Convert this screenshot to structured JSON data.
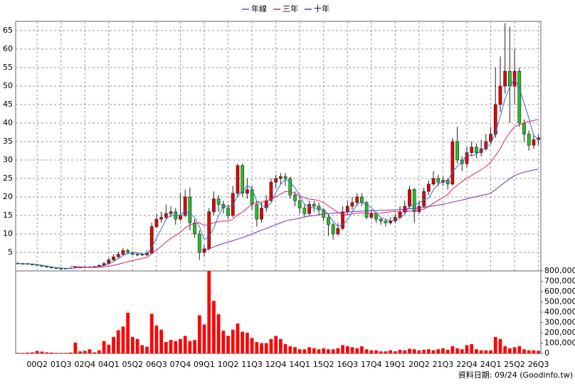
{
  "chart_data": [
    {
      "type": "candlestick",
      "legend": "top",
      "grid": true,
      "up_color": "#e00000",
      "down_color": "#22c022",
      "categories": [
        null,
        null,
        null,
        null,
        "00Q2",
        null,
        null,
        null,
        null,
        "01Q3",
        null,
        null,
        null,
        null,
        "02Q4",
        null,
        null,
        null,
        null,
        "04Q1",
        null,
        null,
        null,
        null,
        "05Q2",
        null,
        null,
        null,
        null,
        "06Q3",
        null,
        null,
        null,
        null,
        "07Q4",
        null,
        null,
        null,
        null,
        "09Q1",
        null,
        null,
        null,
        null,
        "10Q2",
        null,
        null,
        null,
        null,
        "11Q3",
        null,
        null,
        null,
        null,
        "12Q4",
        null,
        null,
        null,
        null,
        "14Q1",
        null,
        null,
        null,
        null,
        "15Q2",
        null,
        null,
        null,
        null,
        "16Q3",
        null,
        null,
        null,
        null,
        "17Q4",
        null,
        null,
        null,
        null,
        "19Q1",
        null,
        null,
        null,
        null,
        "20Q2",
        null,
        null,
        null,
        null,
        "21Q3",
        null,
        null,
        null,
        null,
        "22Q4",
        null,
        null,
        null,
        null,
        "24Q1",
        null,
        null,
        null,
        null,
        "25Q2",
        null,
        null,
        null,
        null,
        "26Q3"
      ],
      "open": [
        2.1,
        2.0,
        2.0,
        1.8,
        1.7,
        1.5,
        1.2,
        1.0,
        0.8,
        0.7,
        0.7,
        0.7,
        0.8,
        1.0,
        1.0,
        1.1,
        1.0,
        1.2,
        1.5,
        2.0,
        3.0,
        3.8,
        4.5,
        5.5,
        5.0,
        4.5,
        4.5,
        4.3,
        4.8,
        12.0,
        14.0,
        14.5,
        15.5,
        16.0,
        14.0,
        15.0,
        20.0,
        13.0,
        10.0,
        5.0,
        6.0,
        16.0,
        19.5,
        18.0,
        17.0,
        15.0,
        21.0,
        28.5,
        21.0,
        22.0,
        18.0,
        14.0,
        17.0,
        19.0,
        24.0,
        25.0,
        25.5,
        25.0,
        20.5,
        19.0,
        17.0,
        15.5,
        18.0,
        17.5,
        16.5,
        14.5,
        12.5,
        10.0,
        11.5,
        16.0,
        17.5,
        18.5,
        20.0,
        18.5,
        14.5,
        15.5,
        14.0,
        13.5,
        13.0,
        13.5,
        14.5,
        16.0,
        17.5,
        22.0,
        16.0,
        17.5,
        21.5,
        23.5,
        25.0,
        24.0,
        24.5,
        23.5,
        35.0,
        30.0,
        29.0,
        32.0,
        33.5,
        32.0,
        33.0,
        35.0,
        37.0,
        45.0,
        50.0,
        54.0,
        50.0,
        54.0,
        40.0,
        37.0,
        34.0,
        35.5
      ],
      "high": [
        2.3,
        2.2,
        2.1,
        1.9,
        1.8,
        1.6,
        1.3,
        1.1,
        0.9,
        0.8,
        0.8,
        0.9,
        1.2,
        1.2,
        1.3,
        1.3,
        1.4,
        1.8,
        2.4,
        3.5,
        4.5,
        5.2,
        6.2,
        6.0,
        5.3,
        5.0,
        4.9,
        5.5,
        13.0,
        15.5,
        16.0,
        18.0,
        17.5,
        17.0,
        21.0,
        22.0,
        22.5,
        14.0,
        11.0,
        7.0,
        17.0,
        21.5,
        20.5,
        19.0,
        18.0,
        23.0,
        29.0,
        29.0,
        25.0,
        23.0,
        19.0,
        18.5,
        20.5,
        25.0,
        26.0,
        26.5,
        26.5,
        25.5,
        21.5,
        20.0,
        18.0,
        19.0,
        19.0,
        18.5,
        17.0,
        15.5,
        13.0,
        13.0,
        17.5,
        19.0,
        20.0,
        21.0,
        21.0,
        19.0,
        16.5,
        16.0,
        14.5,
        14.0,
        14.5,
        15.5,
        17.5,
        19.0,
        23.0,
        22.5,
        19.0,
        22.5,
        24.5,
        27.0,
        26.0,
        25.5,
        25.0,
        36.0,
        39.0,
        31.0,
        33.5,
        35.0,
        34.5,
        35.5,
        37.0,
        39.0,
        55.0,
        58.0,
        67.0,
        66.0,
        60.0,
        55.0,
        41.0,
        38.0,
        37.0,
        37.0
      ],
      "low": [
        1.9,
        1.9,
        1.7,
        1.6,
        1.4,
        1.1,
        0.9,
        0.7,
        0.6,
        0.6,
        0.6,
        0.6,
        0.7,
        0.9,
        0.9,
        0.9,
        0.9,
        1.1,
        1.4,
        1.9,
        2.8,
        3.6,
        4.3,
        4.6,
        4.2,
        4.0,
        4.0,
        4.1,
        4.6,
        11.5,
        13.0,
        14.0,
        14.5,
        12.5,
        13.5,
        14.5,
        11.0,
        9.0,
        3.0,
        4.0,
        5.5,
        15.0,
        16.0,
        15.5,
        14.0,
        14.5,
        20.0,
        20.0,
        19.5,
        16.5,
        12.0,
        13.0,
        16.0,
        18.5,
        22.5,
        23.5,
        23.0,
        19.5,
        17.5,
        15.5,
        14.5,
        15.0,
        16.0,
        15.0,
        13.5,
        9.5,
        8.5,
        9.5,
        11.0,
        15.0,
        16.5,
        17.5,
        17.5,
        14.0,
        14.0,
        13.0,
        12.5,
        12.0,
        12.5,
        13.0,
        14.0,
        15.5,
        17.0,
        13.0,
        15.5,
        17.0,
        20.5,
        23.0,
        23.0,
        23.0,
        22.0,
        23.0,
        29.0,
        27.0,
        28.0,
        31.0,
        30.5,
        31.0,
        32.5,
        34.5,
        36.0,
        43.0,
        48.0,
        40.0,
        45.0,
        39.0,
        35.0,
        32.5,
        33.0,
        34.0
      ],
      "close": [
        2.0,
        2.0,
        1.8,
        1.7,
        1.5,
        1.2,
        1.0,
        0.8,
        0.7,
        0.7,
        0.7,
        0.8,
        1.0,
        1.0,
        1.1,
        1.0,
        1.2,
        1.5,
        2.0,
        3.0,
        3.8,
        4.5,
        5.5,
        5.0,
        4.5,
        4.5,
        4.3,
        4.8,
        12.0,
        14.0,
        14.5,
        15.5,
        16.0,
        14.0,
        15.0,
        20.0,
        13.0,
        10.0,
        5.0,
        6.0,
        16.0,
        19.5,
        18.0,
        17.0,
        15.0,
        21.0,
        28.5,
        21.0,
        22.0,
        18.0,
        14.0,
        17.0,
        19.0,
        24.0,
        25.0,
        25.5,
        25.0,
        20.5,
        19.0,
        17.0,
        15.5,
        18.0,
        17.5,
        16.5,
        14.5,
        12.5,
        10.0,
        11.5,
        16.0,
        17.5,
        18.5,
        20.0,
        18.5,
        14.5,
        15.5,
        14.0,
        13.5,
        13.0,
        13.5,
        14.5,
        16.0,
        17.5,
        22.0,
        16.0,
        17.5,
        21.5,
        23.5,
        25.0,
        24.0,
        24.5,
        23.5,
        35.0,
        30.0,
        29.0,
        32.0,
        33.5,
        32.0,
        33.0,
        35.0,
        37.0,
        45.0,
        50.0,
        54.0,
        50.0,
        54.0,
        40.0,
        37.0,
        34.0,
        35.5,
        36.0
      ],
      "lines": [
        {
          "name": "年線",
          "color": "#2f6fd6",
          "values": [
            2.0,
            2.0,
            1.9,
            1.9,
            1.75,
            1.55,
            1.35,
            1.1,
            0.9,
            0.8,
            0.7,
            0.7,
            0.8,
            0.9,
            1.0,
            1.0,
            1.1,
            1.2,
            1.4,
            1.9,
            2.6,
            3.3,
            4.2,
            4.7,
            4.9,
            4.9,
            4.6,
            4.5,
            6.4,
            8.8,
            11.3,
            14.0,
            15.0,
            15.0,
            15.1,
            16.3,
            15.5,
            14.5,
            12.0,
            8.5,
            9.3,
            11.6,
            14.9,
            17.6,
            17.4,
            17.8,
            20.4,
            21.4,
            23.1,
            22.4,
            18.8,
            17.8,
            17.0,
            18.5,
            21.3,
            23.4,
            24.9,
            24.0,
            22.5,
            20.4,
            18.0,
            17.4,
            17.0,
            16.9,
            16.6,
            15.3,
            13.4,
            12.1,
            12.5,
            13.8,
            15.9,
            18.0,
            18.6,
            17.9,
            17.1,
            15.6,
            14.4,
            14.0,
            13.5,
            13.6,
            14.3,
            15.4,
            17.5,
            17.9,
            18.3,
            19.3,
            19.6,
            21.9,
            23.4,
            24.3,
            24.3,
            26.8,
            28.3,
            29.4,
            31.5,
            31.1,
            31.6,
            32.6,
            33.4,
            34.3,
            37.5,
            41.8,
            46.5,
            49.8,
            52.0,
            49.5,
            45.3,
            41.3,
            36.6,
            35.6
          ]
        },
        {
          "name": "三年",
          "color": "#e0206e",
          "values": [
            null,
            null,
            null,
            null,
            null,
            null,
            null,
            null,
            null,
            null,
            null,
            1.3,
            1.2,
            1.1,
            1.0,
            1.0,
            0.9,
            1.0,
            1.1,
            1.3,
            1.5,
            1.8,
            2.2,
            2.5,
            2.8,
            3.1,
            3.4,
            3.7,
            4.6,
            5.6,
            6.7,
            7.8,
            8.8,
            9.6,
            10.4,
            11.7,
            12.4,
            12.9,
            13.0,
            12.3,
            12.6,
            13.0,
            13.3,
            13.5,
            13.5,
            14.0,
            15.2,
            15.9,
            17.0,
            18.1,
            18.7,
            18.6,
            18.9,
            19.5,
            20.1,
            20.8,
            21.5,
            21.3,
            21.0,
            20.3,
            19.8,
            19.4,
            19.3,
            19.0,
            18.5,
            17.6,
            16.7,
            15.8,
            15.3,
            15.2,
            15.4,
            15.6,
            15.7,
            15.6,
            15.6,
            15.5,
            15.6,
            15.8,
            16.0,
            16.0,
            16.0,
            15.9,
            16.2,
            16.3,
            16.4,
            16.7,
            17.4,
            18.3,
            19.1,
            19.9,
            20.7,
            22.1,
            23.2,
            24.2,
            25.1,
            25.8,
            26.6,
            27.4,
            28.2,
            29.4,
            31.2,
            33.1,
            35.5,
            37.4,
            39.0,
            39.5,
            40.0,
            40.4,
            40.7,
            41.0
          ]
        },
        {
          "name": "十年",
          "color": "#7030c0",
          "values": [
            null,
            null,
            null,
            null,
            null,
            null,
            null,
            null,
            null,
            null,
            null,
            null,
            null,
            null,
            null,
            null,
            null,
            null,
            null,
            null,
            null,
            null,
            null,
            null,
            null,
            null,
            null,
            null,
            null,
            null,
            null,
            null,
            null,
            null,
            null,
            null,
            null,
            null,
            null,
            5.5,
            6.0,
            6.5,
            7.0,
            7.4,
            7.8,
            8.2,
            8.6,
            9.0,
            9.5,
            10.0,
            10.5,
            11.0,
            11.5,
            12.0,
            12.5,
            13.0,
            13.5,
            13.8,
            14.0,
            14.3,
            14.6,
            14.8,
            15.0,
            15.2,
            15.4,
            15.5,
            15.6,
            15.7,
            15.8,
            15.9,
            16.0,
            16.1,
            16.2,
            16.2,
            16.3,
            16.3,
            16.4,
            16.4,
            16.5,
            16.5,
            16.6,
            16.7,
            16.8,
            16.9,
            17.0,
            17.2,
            17.4,
            17.6,
            17.8,
            18.0,
            18.3,
            18.6,
            18.9,
            19.2,
            19.5,
            19.8,
            20.1,
            20.4,
            20.7,
            21.0,
            22.0,
            23.0,
            24.0,
            25.0,
            25.8,
            26.3,
            26.7,
            27.0,
            27.3,
            27.5
          ]
        }
      ],
      "ylim": [
        0,
        67.5
      ],
      "yticks": [
        5,
        10,
        15,
        20,
        25,
        30,
        35,
        40,
        45,
        50,
        55,
        60,
        65
      ]
    },
    {
      "type": "bar",
      "color": "#ff0000",
      "values": [
        5000,
        5000,
        8000,
        10000,
        25000,
        18000,
        10000,
        8000,
        5000,
        5000,
        5000,
        8000,
        105000,
        20000,
        25000,
        40000,
        10000,
        30000,
        120000,
        85000,
        160000,
        225000,
        260000,
        395000,
        160000,
        140000,
        80000,
        65000,
        385000,
        270000,
        230000,
        110000,
        130000,
        120000,
        140000,
        170000,
        120000,
        130000,
        370000,
        280000,
        800000,
        510000,
        380000,
        220000,
        170000,
        230000,
        290000,
        210000,
        200000,
        150000,
        110000,
        100000,
        100000,
        140000,
        170000,
        140000,
        90000,
        70000,
        60000,
        40000,
        40000,
        60000,
        50000,
        40000,
        50000,
        40000,
        40000,
        50000,
        80000,
        70000,
        60000,
        50000,
        70000,
        40000,
        30000,
        30000,
        20000,
        20000,
        30000,
        20000,
        35000,
        30000,
        45000,
        40000,
        30000,
        35000,
        40000,
        30000,
        40000,
        50000,
        35000,
        70000,
        50000,
        40000,
        80000,
        90000,
        40000,
        30000,
        30000,
        30000,
        160000,
        140000,
        70000,
        50000,
        60000,
        70000,
        40000,
        30000,
        30000,
        25000
      ],
      "ylim": [
        0,
        800000
      ],
      "yticks": [
        0,
        {
          "value": 100000,
          "label": "100,000"
        },
        {
          "value": 200000,
          "label": "200,000"
        },
        {
          "value": 300000,
          "label": "300,000"
        },
        {
          "value": 400000,
          "label": "400,000"
        },
        {
          "value": 500000,
          "label": "500,000"
        },
        {
          "value": 600000,
          "label": "600,000"
        },
        {
          "value": 700000,
          "label": "700,000"
        },
        {
          "value": 800000,
          "label": "800,000"
        }
      ],
      "note": "資料日期: 09/24 (Goodinfo.tw)"
    }
  ]
}
